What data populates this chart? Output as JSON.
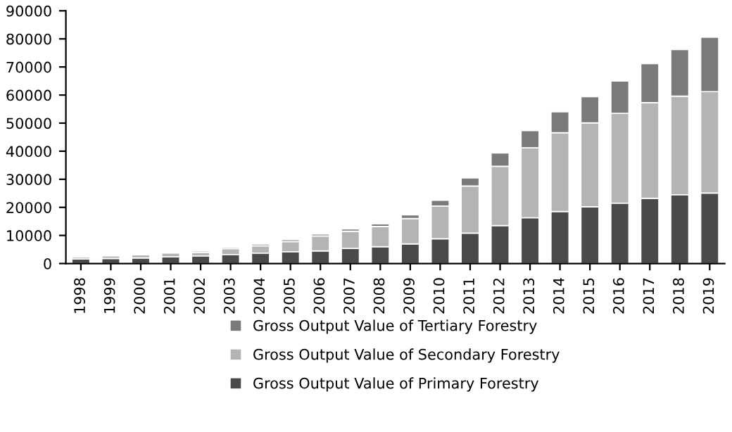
{
  "chart_data": {
    "type": "bar",
    "stacked": true,
    "categories": [
      "1998",
      "1999",
      "2000",
      "2001",
      "2002",
      "2003",
      "2004",
      "2005",
      "2006",
      "2007",
      "2008",
      "2009",
      "2010",
      "2011",
      "2012",
      "2013",
      "2014",
      "2015",
      "2016",
      "2017",
      "2018",
      "2019"
    ],
    "series": [
      {
        "name": "Gross Output Value of Primary Forestry",
        "color": "#4a4a4a",
        "values": [
          1600,
          1800,
          2000,
          2400,
          2700,
          3200,
          3700,
          4200,
          4500,
          5400,
          6000,
          7000,
          8800,
          10800,
          13500,
          16300,
          18500,
          20200,
          21500,
          23200,
          24500,
          25100
        ]
      },
      {
        "name": "Gross Output Value of Secondary Forestry",
        "color": "#b4b4b4",
        "values": [
          700,
          900,
          1100,
          1300,
          1300,
          2100,
          2600,
          3600,
          5300,
          6100,
          7200,
          9000,
          11700,
          16800,
          21100,
          24900,
          28100,
          29900,
          32000,
          34100,
          35100,
          36100
        ]
      },
      {
        "name": "Gross Output Value of Tertiary Forestry",
        "color": "#7a7a7a",
        "values": [
          null,
          null,
          400,
          null,
          500,
          500,
          600,
          700,
          700,
          800,
          900,
          1300,
          2000,
          2900,
          4800,
          6100,
          7400,
          9300,
          11500,
          13900,
          16600,
          19400
        ]
      }
    ],
    "ylim": [
      0,
      90000
    ],
    "yticks": [
      0,
      10000,
      20000,
      30000,
      40000,
      50000,
      60000,
      70000,
      80000,
      90000
    ],
    "grid": false,
    "legend": "bottom"
  }
}
